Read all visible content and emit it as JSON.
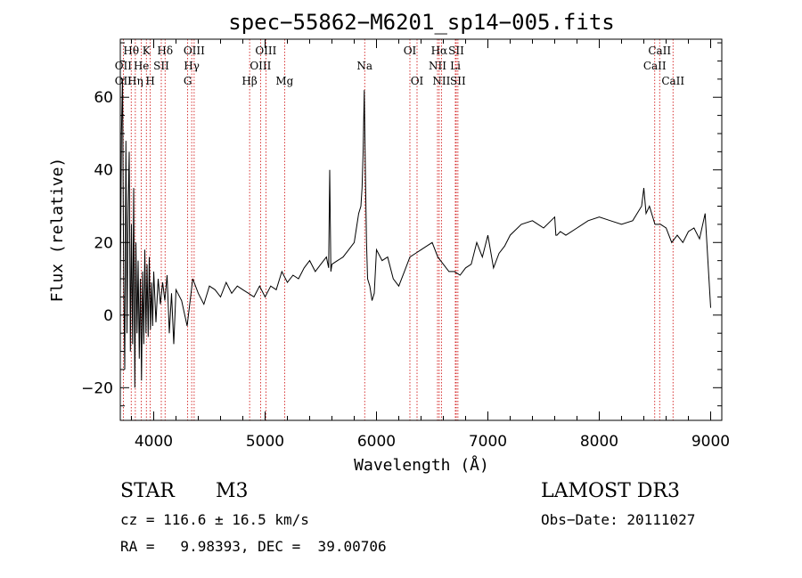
{
  "chart_data": {
    "type": "line",
    "title": "spec−55862−M6201_sp14−005.fits",
    "xlabel": "Wavelength (Å)",
    "ylabel": "Flux (relative)",
    "xlim": [
      3700,
      9100
    ],
    "ylim": [
      -29,
      76
    ],
    "xticks": [
      4000,
      5000,
      6000,
      7000,
      8000,
      9000
    ],
    "xtick_labels": [
      "4000",
      "5000",
      "6000",
      "7000",
      "8000",
      "9000"
    ],
    "yticks": [
      -20,
      0,
      20,
      40,
      60
    ],
    "ytick_labels": [
      "−20",
      "0",
      "20",
      "40",
      "60"
    ],
    "grid": false,
    "series": [
      {
        "name": "flux",
        "color": "#000000",
        "x": [
          3700,
          3710,
          3720,
          3730,
          3740,
          3750,
          3760,
          3770,
          3780,
          3790,
          3800,
          3810,
          3820,
          3830,
          3840,
          3850,
          3860,
          3870,
          3880,
          3890,
          3900,
          3910,
          3920,
          3930,
          3940,
          3950,
          3960,
          3970,
          3980,
          3990,
          4000,
          4020,
          4040,
          4060,
          4080,
          4100,
          4120,
          4140,
          4160,
          4180,
          4200,
          4250,
          4300,
          4350,
          4400,
          4450,
          4500,
          4550,
          4600,
          4650,
          4700,
          4750,
          4800,
          4850,
          4900,
          4950,
          5000,
          5050,
          5100,
          5150,
          5200,
          5250,
          5300,
          5350,
          5400,
          5450,
          5500,
          5550,
          5570,
          5580,
          5590,
          5600,
          5650,
          5700,
          5750,
          5800,
          5820,
          5840,
          5860,
          5870,
          5880,
          5890,
          5900,
          5910,
          5920,
          5940,
          5960,
          5980,
          6000,
          6050,
          6100,
          6150,
          6200,
          6250,
          6300,
          6350,
          6400,
          6450,
          6500,
          6550,
          6600,
          6650,
          6700,
          6750,
          6800,
          6850,
          6900,
          6950,
          7000,
          7050,
          7100,
          7150,
          7200,
          7300,
          7400,
          7500,
          7600,
          7610,
          7620,
          7650,
          7700,
          7800,
          7900,
          8000,
          8100,
          8200,
          8300,
          8380,
          8400,
          8420,
          8450,
          8500,
          8550,
          8600,
          8650,
          8700,
          8750,
          8800,
          8850,
          8900,
          8950,
          9000
        ],
        "y": [
          5,
          50,
          65,
          10,
          -15,
          48,
          -5,
          30,
          45,
          -10,
          25,
          -8,
          35,
          -20,
          20,
          -5,
          15,
          -12,
          10,
          -18,
          12,
          -8,
          18,
          -5,
          14,
          -6,
          16,
          -4,
          9,
          -3,
          12,
          -2,
          10,
          3,
          9,
          4,
          11,
          -5,
          6,
          -8,
          7,
          4,
          -3,
          10,
          6,
          3,
          8,
          7,
          5,
          9,
          6,
          8,
          7,
          6,
          5,
          8,
          5,
          8,
          7,
          12,
          9,
          11,
          10,
          13,
          15,
          12,
          14,
          16,
          13,
          40,
          12,
          14,
          15,
          16,
          18,
          20,
          24,
          28,
          30,
          35,
          45,
          62,
          40,
          20,
          10,
          8,
          4,
          6,
          18,
          15,
          16,
          10,
          8,
          12,
          16,
          17,
          18,
          19,
          20,
          16,
          14,
          12,
          12,
          11,
          13,
          14,
          20,
          16,
          22,
          13,
          17,
          19,
          22,
          25,
          26,
          24,
          27,
          22,
          22,
          23,
          22,
          24,
          26,
          27,
          26,
          25,
          26,
          30,
          35,
          28,
          30,
          25,
          25,
          24,
          20,
          22,
          20,
          23,
          24,
          21,
          28,
          2
        ]
      }
    ],
    "line_markers": [
      {
        "label": "Hθ",
        "x": 3798,
        "row": 1
      },
      {
        "label": "OII",
        "x": 3727,
        "row": 2
      },
      {
        "label": "OII",
        "x": 3727,
        "row": 3
      },
      {
        "label": "Hη",
        "x": 3835,
        "row": 3
      },
      {
        "label": "He",
        "x": 3889,
        "row": 2
      },
      {
        "label": "K",
        "x": 3934,
        "row": 1
      },
      {
        "label": "SII",
        "x": 4068,
        "row": 2
      },
      {
        "label": "H",
        "x": 3969,
        "row": 3
      },
      {
        "label": "Hδ",
        "x": 4102,
        "row": 1
      },
      {
        "label": "OIII",
        "x": 4363,
        "row": 1
      },
      {
        "label": "Hγ",
        "x": 4341,
        "row": 2
      },
      {
        "label": "G",
        "x": 4305,
        "row": 3
      },
      {
        "label": "OIII",
        "x": 5007,
        "row": 1
      },
      {
        "label": "OIII",
        "x": 4959,
        "row": 2
      },
      {
        "label": "Hβ",
        "x": 4861,
        "row": 3
      },
      {
        "label": "Mg",
        "x": 5175,
        "row": 3
      },
      {
        "label": "Na",
        "x": 5894,
        "row": 2
      },
      {
        "label": "OI",
        "x": 6300,
        "row": 1
      },
      {
        "label": "OI",
        "x": 6364,
        "row": 3
      },
      {
        "label": "Hα",
        "x": 6563,
        "row": 1
      },
      {
        "label": "SII",
        "x": 6716,
        "row": 1
      },
      {
        "label": "NII",
        "x": 6548,
        "row": 2
      },
      {
        "label": "Li",
        "x": 6708,
        "row": 2
      },
      {
        "label": "NII",
        "x": 6583,
        "row": 3
      },
      {
        "label": "SII",
        "x": 6731,
        "row": 3
      },
      {
        "label": "CaII",
        "x": 8542,
        "row": 1
      },
      {
        "label": "CaII",
        "x": 8498,
        "row": 2
      },
      {
        "label": "CaII",
        "x": 8662,
        "row": 3
      }
    ]
  },
  "info": {
    "class_label": "STAR",
    "subclass": "M3",
    "survey": "LAMOST DR3",
    "cz": "cz = 116.6 ± 16.5 km/s",
    "obs_date": "Obs−Date: 20111027",
    "radec": "RA =   9.98393, DEC =  39.00706"
  },
  "colors": {
    "marker_line": "#cc0000",
    "axis": "#000000"
  }
}
